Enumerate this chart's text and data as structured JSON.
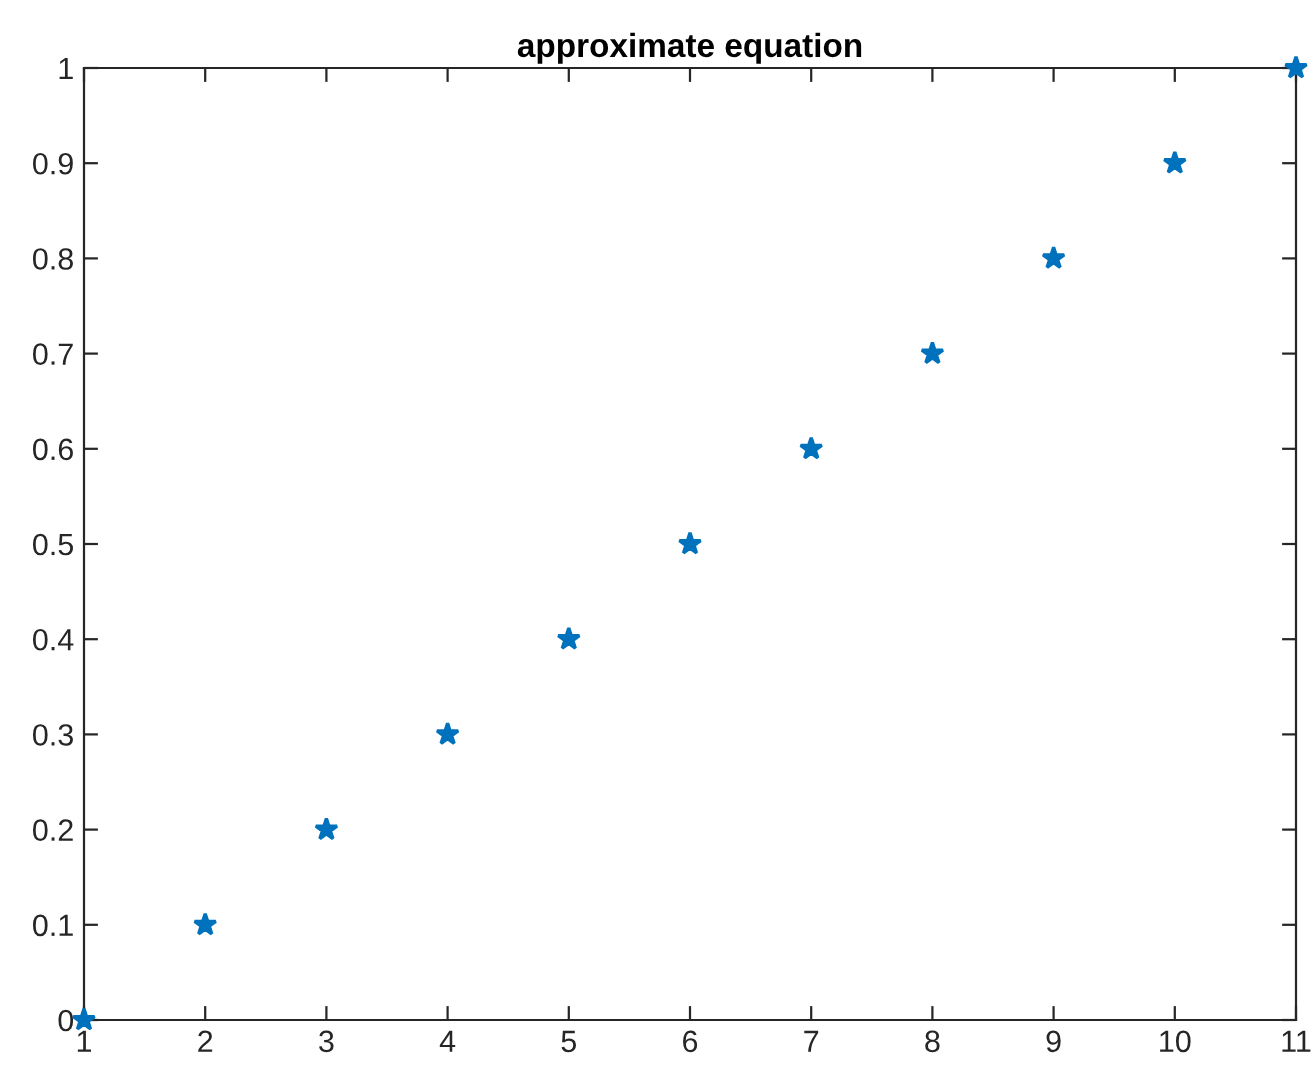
{
  "chart_data": {
    "type": "scatter",
    "title": "approximate equation",
    "x": [
      1,
      2,
      3,
      4,
      5,
      6,
      7,
      8,
      9,
      10,
      11
    ],
    "series": [
      {
        "color": "#0072bd",
        "values": [
          0,
          0.1,
          0.2,
          0.3,
          0.4,
          0.5,
          0.6,
          0.7,
          0.8,
          0.9,
          1
        ]
      }
    ],
    "xlim": [
      1,
      11
    ],
    "xticks": [
      1,
      2,
      3,
      4,
      5,
      6,
      7,
      8,
      9,
      10,
      11
    ],
    "ylim": [
      0,
      1
    ],
    "yticks": [
      0,
      0.1,
      0.2,
      0.3,
      0.4,
      0.5,
      0.6,
      0.7,
      0.8,
      0.9,
      1
    ],
    "grid": false,
    "legend": false,
    "marker": "star"
  }
}
